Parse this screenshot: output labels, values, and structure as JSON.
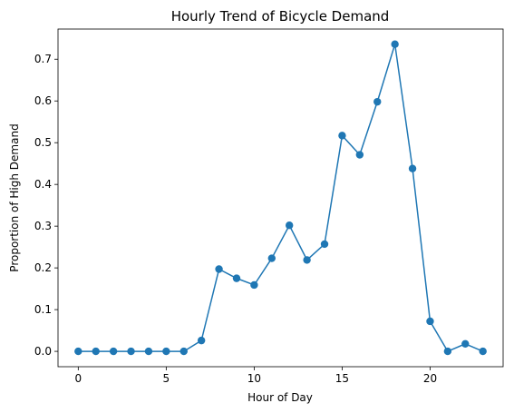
{
  "chart_data": {
    "type": "line",
    "title": "Hourly Trend of Bicycle Demand",
    "xlabel": "Hour of Day",
    "ylabel": "Proportion of High Demand",
    "xlim": [
      -1.15,
      24.15
    ],
    "ylim": [
      -0.0368,
      0.7723
    ],
    "xticks": [
      0,
      5,
      10,
      15,
      20
    ],
    "yticks": [
      0.0,
      0.1,
      0.2,
      0.3,
      0.4,
      0.5,
      0.6,
      0.7
    ],
    "x": [
      0,
      1,
      2,
      3,
      4,
      5,
      6,
      7,
      8,
      9,
      10,
      11,
      12,
      13,
      14,
      15,
      16,
      17,
      18,
      19,
      20,
      21,
      22,
      23
    ],
    "series": [
      {
        "color": "#1f77b4",
        "marker": "circle",
        "values": [
          0.0,
          0.0,
          0.0,
          0.0,
          0.0,
          0.0,
          0.0,
          0.026,
          0.197,
          0.175,
          0.159,
          0.223,
          0.302,
          0.219,
          0.257,
          0.517,
          0.471,
          0.598,
          0.736,
          0.438,
          0.072,
          0.0,
          0.018,
          0.0
        ]
      }
    ],
    "grid": false,
    "legend": "none"
  }
}
